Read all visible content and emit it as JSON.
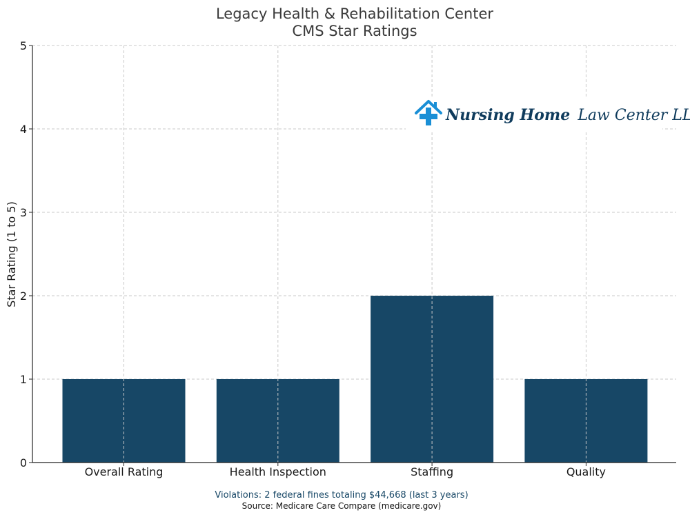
{
  "colors": {
    "bar": "#174766",
    "logo_text": "#0f3b5c",
    "logo_icon": "#1a8fd6",
    "violations": "#174766"
  },
  "chart_data": {
    "type": "bar",
    "title_line1": "Legacy Health & Rehabilitation Center",
    "title_line2": "CMS Star Ratings",
    "ylabel": "Star Rating (1 to 5)",
    "xlabel": "",
    "categories": [
      "Overall Rating",
      "Health Inspection",
      "Staffing",
      "Quality"
    ],
    "values": [
      1,
      1,
      2,
      1
    ],
    "ylim": [
      0,
      5
    ],
    "yticks": [
      "0",
      "1",
      "2",
      "3",
      "4",
      "5"
    ],
    "grid": true
  },
  "logo": {
    "icon": "house-medical-cross-icon",
    "bold_text": "Nursing Home",
    "text": "Law Center LLC"
  },
  "footer": {
    "violations": "Violations: 2 federal fines totaling $44,668 (last 3 years)",
    "source": "Source: Medicare Care Compare (medicare.gov)"
  }
}
